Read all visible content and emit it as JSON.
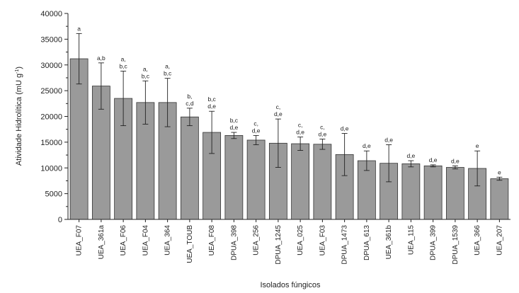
{
  "chart_data": {
    "type": "bar",
    "title": "",
    "xlabel": "Isolados fúngicos",
    "ylabel_main": "Atividade Hidrolítica (mU g",
    "ylabel_sup": "-1",
    "ylabel_end": ")",
    "ylim": [
      0,
      40000
    ],
    "yticks": [
      0,
      5000,
      10000,
      15000,
      20000,
      25000,
      30000,
      35000,
      40000
    ],
    "ytick_labels": [
      "0",
      "5000",
      "10000",
      "15000",
      "20000",
      "25000",
      "30000",
      "35000",
      "40000"
    ],
    "grid": false,
    "bar_color": "#9a9a9a",
    "categories": [
      "UEA_F07",
      "UEA_361a",
      "UEA_F06",
      "UEA_F04",
      "UEA_364",
      "UEA_TOUB",
      "UEA_F08",
      "DPUA_398",
      "UEA_256",
      "DPUA_1245",
      "UEA_025",
      "UEA_F03",
      "DPUA_1473",
      "DPUA_613",
      "UEA_361b",
      "UEA_115",
      "DPUA_399",
      "DPUA_1539",
      "UEA_366",
      "UEA_207"
    ],
    "values": [
      31200,
      25900,
      23500,
      22700,
      22700,
      19900,
      16900,
      16300,
      15400,
      14800,
      14700,
      14600,
      12600,
      11400,
      10900,
      10800,
      10400,
      10100,
      9900,
      7900
    ],
    "errors": [
      4900,
      4500,
      5300,
      4200,
      4700,
      1700,
      4100,
      600,
      900,
      4700,
      1300,
      1000,
      4100,
      1900,
      3600,
      600,
      200,
      300,
      3400,
      300
    ],
    "annotations": [
      [
        "a"
      ],
      [
        "a,b"
      ],
      [
        "a,",
        "b,c"
      ],
      [
        "a,",
        "b,c"
      ],
      [
        "a,",
        "b,c"
      ],
      [
        "b,",
        "c,d"
      ],
      [
        "b,c",
        "d,e"
      ],
      [
        "b,c",
        "d,e"
      ],
      [
        "c,",
        "d,e"
      ],
      [
        "c,",
        "d,e"
      ],
      [
        "c,",
        "d,e"
      ],
      [
        "c,",
        "d,e"
      ],
      [
        "d,e"
      ],
      [
        "d,e"
      ],
      [
        "d,e"
      ],
      [
        "d,e"
      ],
      [
        "d,e"
      ],
      [
        "d,e"
      ],
      [
        "e"
      ],
      [
        "e"
      ]
    ]
  }
}
